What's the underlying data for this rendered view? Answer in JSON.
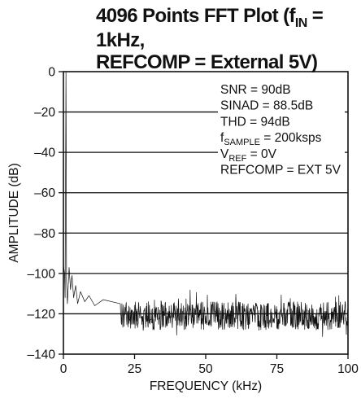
{
  "chart_data": {
    "type": "line",
    "title": {
      "line1_prefix": "4096 Points FFT Plot (f",
      "line1_sub": "IN",
      "line1_suffix": " = 1kHz,",
      "line2": "REFCOMP = External 5V)"
    },
    "xlabel": "FREQUENCY (kHz)",
    "ylabel": "AMPLITUDE (dB)",
    "xlim": [
      0,
      100
    ],
    "ylim": [
      -140,
      0
    ],
    "xticks": [
      0,
      25,
      50,
      75,
      100
    ],
    "yticks": [
      0,
      -20,
      -40,
      -60,
      -80,
      -100,
      -120,
      -140
    ],
    "ytick_labels": [
      "0",
      "–20",
      "–40",
      "–60",
      "–80",
      "–100",
      "–120",
      "–140"
    ],
    "grid": "horizontal",
    "series": [
      {
        "points": [
          [
            0,
            -96
          ],
          [
            0.4,
            -100
          ],
          [
            0.6,
            -112
          ],
          [
            0.9,
            0
          ],
          [
            1.1,
            -104
          ],
          [
            1.4,
            -115
          ],
          [
            2.0,
            -97
          ],
          [
            2.5,
            -108
          ],
          [
            3.0,
            -101
          ],
          [
            3.6,
            -112
          ],
          [
            4.3,
            -106
          ],
          [
            5.0,
            -115
          ],
          [
            6.0,
            -109
          ],
          [
            7.5,
            -114
          ],
          [
            9.0,
            -111
          ],
          [
            11.0,
            -116
          ],
          [
            14.0,
            -113
          ],
          [
            20.0,
            -115
          ]
        ],
        "noise_floor_db": -121,
        "noise_range_db": [
          -132,
          -108
        ]
      }
    ],
    "annotations": [
      {
        "text": "SNR = 90dB"
      },
      {
        "text": "SINAD = 88.5dB"
      },
      {
        "text": "THD = 94dB"
      },
      {
        "prefix": "f",
        "sub": "SAMPLE",
        "suffix": " = 200ksps"
      },
      {
        "prefix": "V",
        "sub": "REF",
        "suffix": " = 0V"
      },
      {
        "text": "REFCOMP = EXT 5V"
      }
    ],
    "colors": {
      "trace": "#111111",
      "grid": "#111111",
      "background": "#ffffff"
    }
  }
}
